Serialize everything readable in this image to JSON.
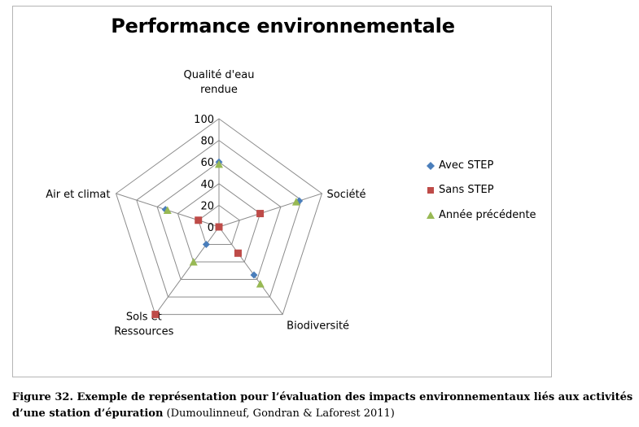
{
  "chart_data": {
    "type": "radar",
    "title": "Performance environnementale",
    "axes": [
      [
        "Qualité d'eau",
        "rendue"
      ],
      [
        "Société"
      ],
      [
        "Biodiversité"
      ],
      [
        "Sols et",
        "Ressources"
      ],
      [
        "Air et climat"
      ]
    ],
    "rmax": 100,
    "ticks": [
      0,
      20,
      40,
      60,
      80,
      100
    ],
    "tick_labels": [
      "0",
      "20",
      "40",
      "60",
      "80",
      "100"
    ],
    "grid": true,
    "legend_position": "right",
    "series": [
      {
        "name": "Avec STEP",
        "marker": "diamond",
        "color": "#4a7ebb",
        "values": [
          60,
          78,
          55,
          20,
          52
        ]
      },
      {
        "name": "Sans STEP",
        "marker": "square",
        "color": "#be4b48",
        "values": [
          0,
          40,
          30,
          100,
          20
        ]
      },
      {
        "name": "Année précédente",
        "marker": "triangle",
        "color": "#98b954",
        "values": [
          58,
          75,
          65,
          40,
          50
        ]
      }
    ]
  },
  "caption": {
    "bold": "Figure 32. Exemple de représentation pour l’évaluation des impacts environnementaux liés aux activités d’une station d’épuration",
    "normal": " (Dumoulinneuf, Gondran & Laforest 2011)"
  }
}
